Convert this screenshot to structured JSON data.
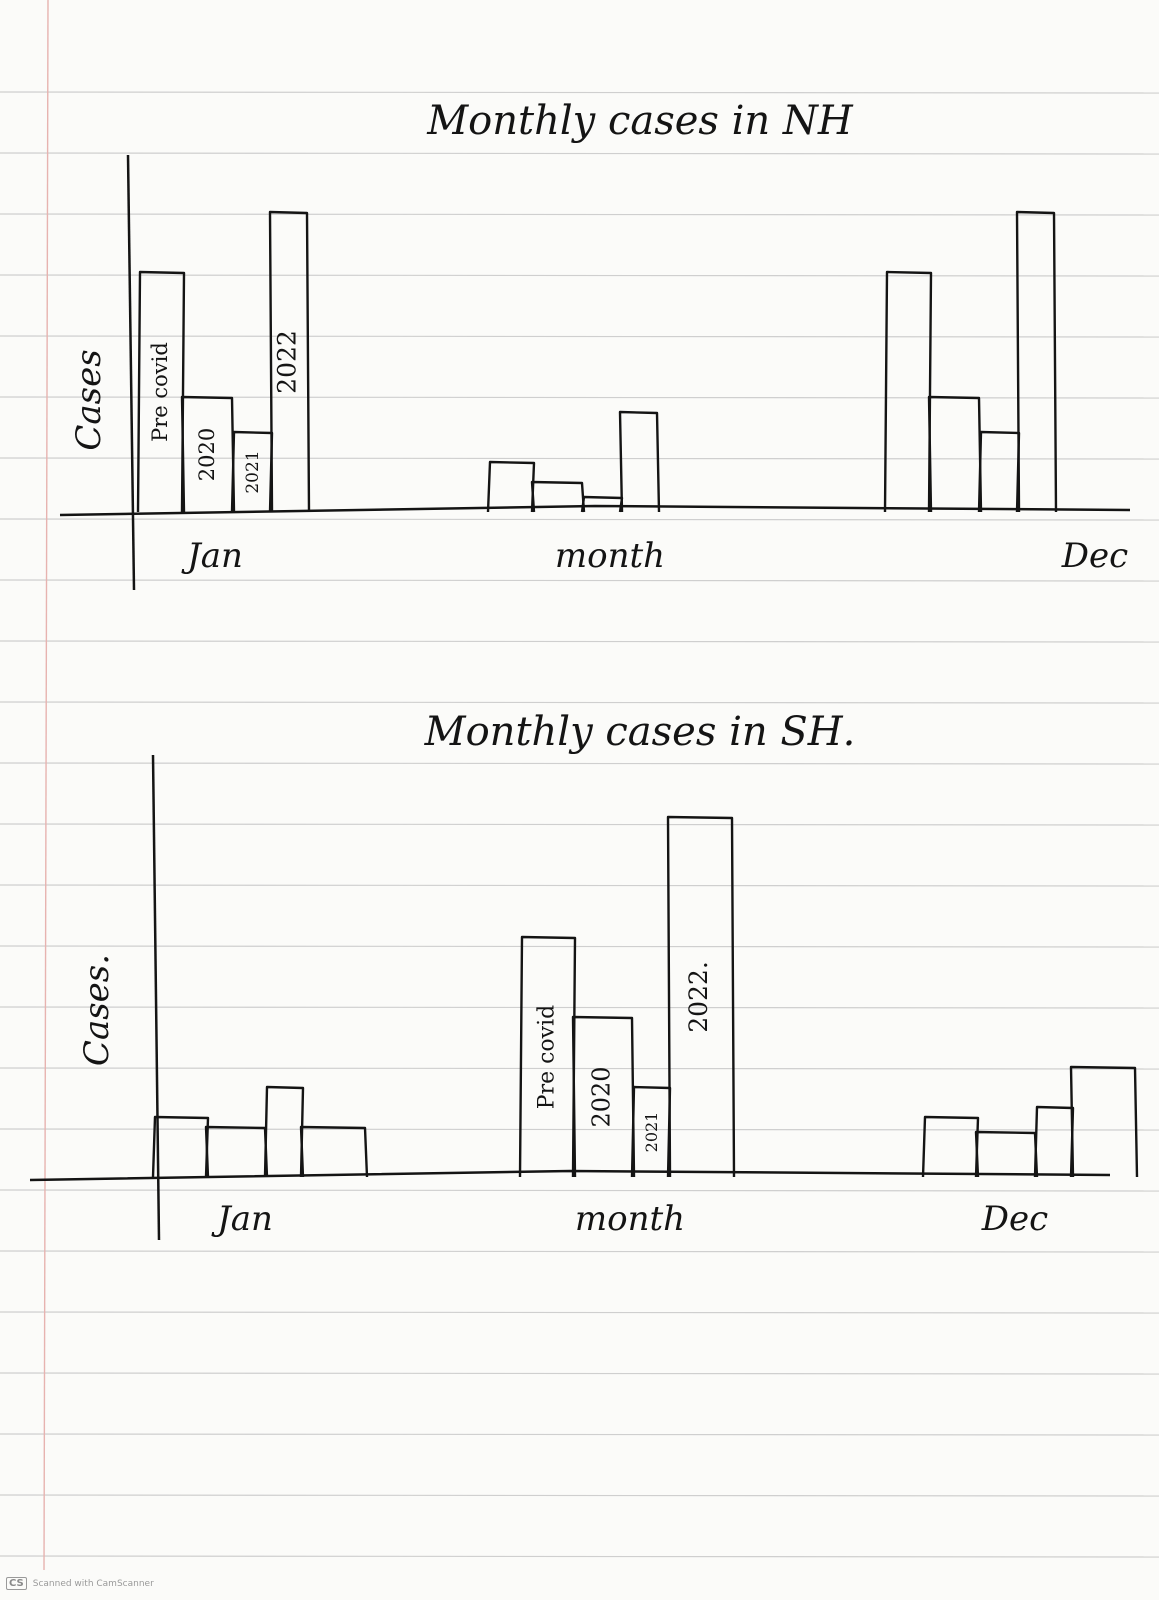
{
  "chart_data": [
    {
      "type": "bar",
      "title": "Monthly cases in NH",
      "xlabel": "month",
      "ylabel": "Cases",
      "x_tick_labels": [
        "Jan",
        "month",
        "Dec"
      ],
      "bar_labels": [
        "Pre covid",
        "2020",
        "2021",
        "2022"
      ],
      "groups": [
        {
          "position": "Jan",
          "values": [
            24,
            11.5,
            8,
            30
          ]
        },
        {
          "position": "month",
          "values": [
            5,
            3,
            1.5,
            10
          ]
        },
        {
          "position": "Dec",
          "values": [
            24,
            11.5,
            8,
            30
          ]
        }
      ],
      "grid": false,
      "legend": "none"
    },
    {
      "type": "bar",
      "title": "Monthly cases in SH.",
      "xlabel": "month",
      "ylabel": "Cases.",
      "x_tick_labels": [
        "Jan",
        "month",
        "Dec"
      ],
      "bar_labels": [
        "Pre covid",
        "2020",
        "2021",
        "2022."
      ],
      "groups": [
        {
          "position": "Jan",
          "values": [
            6,
            5,
            9,
            5
          ]
        },
        {
          "position": "month",
          "values": [
            24,
            16,
            9,
            36
          ]
        },
        {
          "position": "Dec",
          "values": [
            6,
            4.5,
            7,
            11
          ]
        }
      ],
      "grid": false,
      "legend": "none"
    }
  ],
  "footer": {
    "logo": "CS",
    "text": "Scanned with CamScanner"
  }
}
